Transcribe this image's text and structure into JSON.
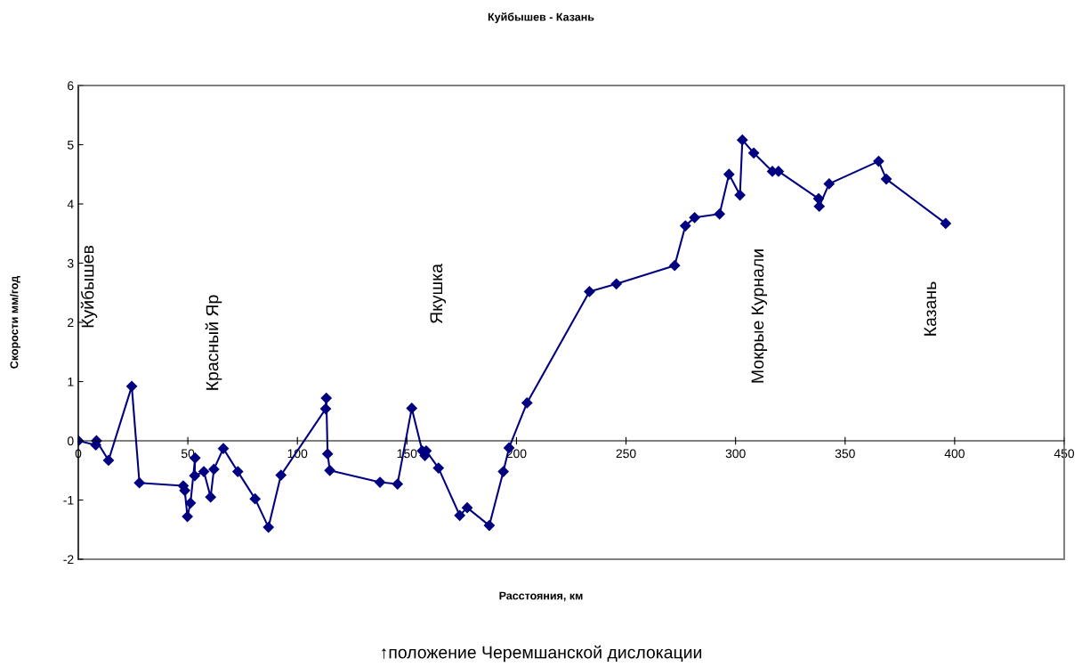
{
  "chart_data": {
    "type": "line",
    "title": "Куйбышев - Казань",
    "xlabel": "Расстояния, км",
    "ylabel": "Скорости мм/год",
    "series": [
      {
        "color": "#000080",
        "x": [
          0,
          8.0,
          8.3,
          13.8,
          24.4,
          27.9,
          47.9,
          48.6,
          49.8,
          51.2,
          53.3,
          53.1,
          57.3,
          60.4,
          61.9,
          66.2,
          72.8,
          80.7,
          86.8,
          92.5,
          112.9,
          113.2,
          113.8,
          114.8,
          137.7,
          145.7,
          152.2,
          157.0,
          158.2,
          158.8,
          164.4,
          174.1,
          177.5,
          187.6,
          194.0,
          196.6,
          204.8,
          233.3,
          245.6,
          272.2,
          277.1,
          281.3,
          292.7,
          297.0,
          302.0,
          303.1,
          308.3,
          316.8,
          319.6,
          337.9,
          338.2,
          342.7,
          365.3,
          368.8,
          395.9
        ],
        "values": [
          0,
          -0.07,
          0,
          -0.33,
          0.92,
          -0.71,
          -0.76,
          -0.84,
          -1.28,
          -1.05,
          -0.29,
          -0.59,
          -0.52,
          -0.95,
          -0.48,
          -0.13,
          -0.52,
          -0.98,
          -1.46,
          -0.58,
          0.54,
          0.72,
          -0.22,
          -0.5,
          -0.7,
          -0.73,
          0.55,
          -0.17,
          -0.25,
          -0.17,
          -0.46,
          -1.26,
          -1.13,
          -1.43,
          -0.52,
          -0.12,
          0.64,
          2.52,
          2.65,
          2.96,
          3.63,
          3.77,
          3.83,
          4.5,
          4.15,
          5.08,
          4.86,
          4.55,
          4.55,
          4.09,
          3.96,
          4.34,
          4.72,
          4.42,
          3.67
        ]
      }
    ],
    "marker": "diamond",
    "line_style": "solid",
    "grid": false,
    "legend": false,
    "xlim": [
      0,
      450
    ],
    "xticks": [
      0,
      50,
      100,
      150,
      200,
      250,
      300,
      350,
      400,
      450
    ],
    "ylim": [
      -2,
      6
    ],
    "yticks": [
      -2,
      -1,
      0,
      1,
      2,
      3,
      4,
      5,
      6
    ],
    "annotations": [
      "Куйбышев",
      "Красный Яр",
      "Якушка",
      "Мокрые Курнали",
      "Казань",
      "↑положение Черемшанской дислокации"
    ]
  }
}
